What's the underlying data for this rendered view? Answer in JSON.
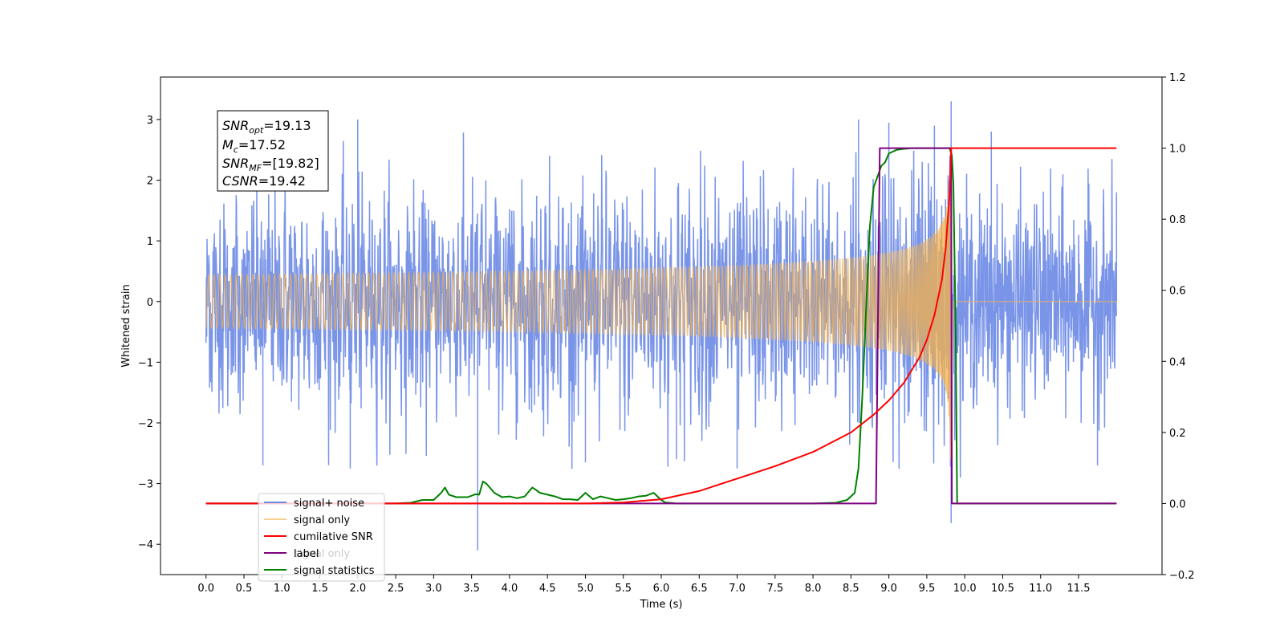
{
  "chart_data": {
    "type": "line",
    "xlabel": "Time (s)",
    "ylabel": "Whitened strain",
    "xlim": [
      -0.6,
      12.6
    ],
    "ylim": [
      -4.5,
      3.7
    ],
    "y2lim": [
      -0.2,
      1.2
    ],
    "x_ticks": [
      "0.0",
      "0.5",
      "1.0",
      "1.5",
      "2.0",
      "2.5",
      "3.0",
      "3.5",
      "4.0",
      "4.5",
      "5.0",
      "5.5",
      "6.0",
      "6.5",
      "7.0",
      "7.5",
      "8.0",
      "8.5",
      "9.0",
      "9.5",
      "10.0",
      "10.5",
      "11.0",
      "11.5"
    ],
    "y_ticks": [
      "3",
      "2",
      "1",
      "0",
      "−1",
      "−2",
      "−3",
      "−4"
    ],
    "y2_ticks": [
      "1.2",
      "1.0",
      "0.8",
      "0.6",
      "0.4",
      "0.2",
      "0.0",
      "−0.2"
    ],
    "annotation": {
      "snr_opt": {
        "base": "SNR",
        "sub": "opt",
        "value": "=19.13"
      },
      "mc": {
        "base": "M",
        "sub": "c",
        "value": "=17.52"
      },
      "snr_mf": {
        "base": "SNR",
        "sub": "MF",
        "value": "=[19.82]"
      },
      "csnr": {
        "base": "CSNR",
        "sub": "",
        "value": "=19.42"
      }
    },
    "legend": {
      "placement": "lower-left",
      "labels": [
        "signal+ noise",
        "signal only",
        "cumilative SNR",
        "label",
        "signal statistics"
      ],
      "hidden_label": "signal only"
    },
    "series": [
      {
        "name": "signal+ noise",
        "axis": "left",
        "color": "#6b8ae6",
        "description_range": [
          0.0,
          12.0
        ],
        "noise_sigma": 0.85,
        "spikes": [
          [
            3.58,
            -4.1
          ],
          [
            9.82,
            3.3
          ],
          [
            9.82,
            -3.65
          ],
          [
            2.0,
            3.0
          ],
          [
            8.6,
            3.0
          ],
          [
            9.0,
            2.95
          ],
          [
            0.75,
            -2.7
          ],
          [
            1.9,
            -2.75
          ],
          [
            5.0,
            -2.65
          ],
          [
            6.2,
            -2.6
          ],
          [
            7.0,
            -2.75
          ],
          [
            9.6,
            2.9
          ],
          [
            10.35,
            2.8
          ],
          [
            11.75,
            -2.7
          ],
          [
            12.0,
            1.8
          ]
        ]
      },
      {
        "name": "signal only",
        "axis": "left",
        "color": "#f5b14a",
        "range": [
          0.0,
          12.0
        ],
        "merger_time": 9.82,
        "peak_amplitude": 3.1
      },
      {
        "name": "cumilative SNR",
        "axis": "right",
        "color": "#ff0000",
        "x": [
          0.0,
          5.0,
          5.5,
          6.0,
          6.5,
          7.0,
          7.5,
          8.0,
          8.5,
          8.8,
          9.0,
          9.2,
          9.4,
          9.5,
          9.6,
          9.7,
          9.75,
          9.8,
          9.82,
          9.85,
          12.0
        ],
        "y": [
          0.0,
          0.0,
          0.003,
          0.012,
          0.035,
          0.07,
          0.105,
          0.145,
          0.2,
          0.25,
          0.29,
          0.34,
          0.41,
          0.46,
          0.53,
          0.63,
          0.72,
          0.87,
          1.0,
          1.0,
          1.0
        ]
      },
      {
        "name": "label",
        "axis": "right",
        "color": "#800080",
        "x": [
          0.0,
          8.83,
          8.88,
          9.82,
          9.83,
          12.0
        ],
        "y": [
          0.0,
          0.0,
          1.0,
          1.0,
          0.0,
          0.0
        ]
      },
      {
        "name": "signal statistics",
        "axis": "right",
        "color": "#008000",
        "x": [
          0.0,
          2.5,
          2.7,
          2.85,
          3.0,
          3.1,
          3.15,
          3.2,
          3.3,
          3.45,
          3.55,
          3.6,
          3.65,
          3.7,
          3.8,
          3.9,
          4.0,
          4.1,
          4.2,
          4.3,
          4.35,
          4.4,
          4.5,
          4.6,
          4.7,
          4.8,
          4.9,
          5.0,
          5.1,
          5.2,
          5.3,
          5.4,
          5.5,
          5.6,
          5.7,
          5.8,
          5.9,
          6.0,
          6.05,
          6.1,
          6.2,
          6.4,
          7.0,
          8.0,
          8.3,
          8.45,
          8.55,
          8.6,
          8.65,
          8.7,
          8.75,
          8.8,
          8.85,
          8.9,
          8.95,
          9.0,
          9.05,
          9.1,
          9.2,
          9.3,
          9.4,
          9.6,
          9.8,
          9.83,
          9.85,
          9.88,
          9.9,
          12.0
        ],
        "y": [
          0.0,
          0.0,
          0.002,
          0.01,
          0.01,
          0.03,
          0.045,
          0.025,
          0.018,
          0.018,
          0.026,
          0.025,
          0.062,
          0.055,
          0.03,
          0.018,
          0.02,
          0.015,
          0.02,
          0.045,
          0.038,
          0.03,
          0.025,
          0.02,
          0.012,
          0.012,
          0.01,
          0.03,
          0.012,
          0.02,
          0.015,
          0.01,
          0.012,
          0.015,
          0.02,
          0.022,
          0.03,
          0.01,
          0.003,
          0.002,
          0.0,
          0.0,
          0.0,
          0.0,
          0.002,
          0.01,
          0.03,
          0.1,
          0.3,
          0.55,
          0.78,
          0.89,
          0.92,
          0.95,
          0.96,
          0.985,
          0.99,
          0.995,
          0.998,
          1.0,
          1.0,
          1.0,
          1.0,
          0.98,
          0.9,
          0.5,
          0.0,
          0.0
        ]
      }
    ]
  }
}
